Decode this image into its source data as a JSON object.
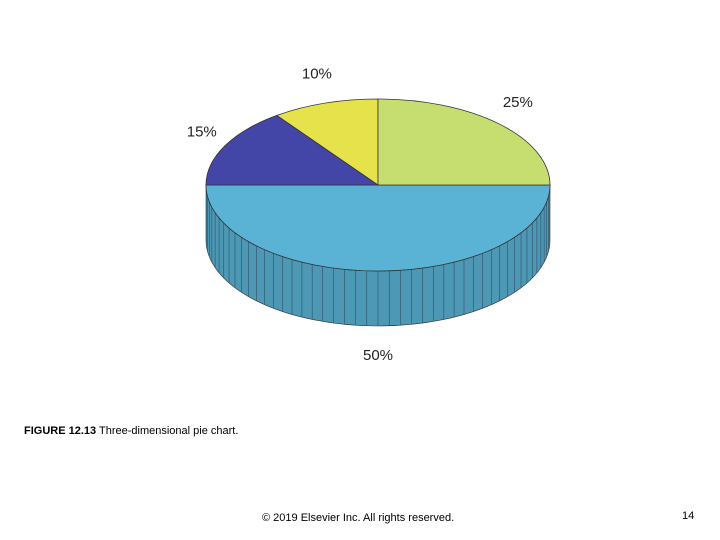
{
  "chart_data": {
    "type": "pie",
    "series": [
      {
        "values": [
          50,
          15,
          10,
          25
        ],
        "value_labels": [
          "50%",
          "15%",
          "10%",
          "25%"
        ],
        "colors": [
          "#5ab3d5",
          "#4446a7",
          "#e6e24c",
          "#c6de6f"
        ]
      }
    ]
  },
  "caption": {
    "label": "FIGURE 12.13",
    "text": "Three-dimensional pie chart."
  },
  "footer": "© 2019 Elsevier Inc. All rights reserved.",
  "page_number": 14
}
